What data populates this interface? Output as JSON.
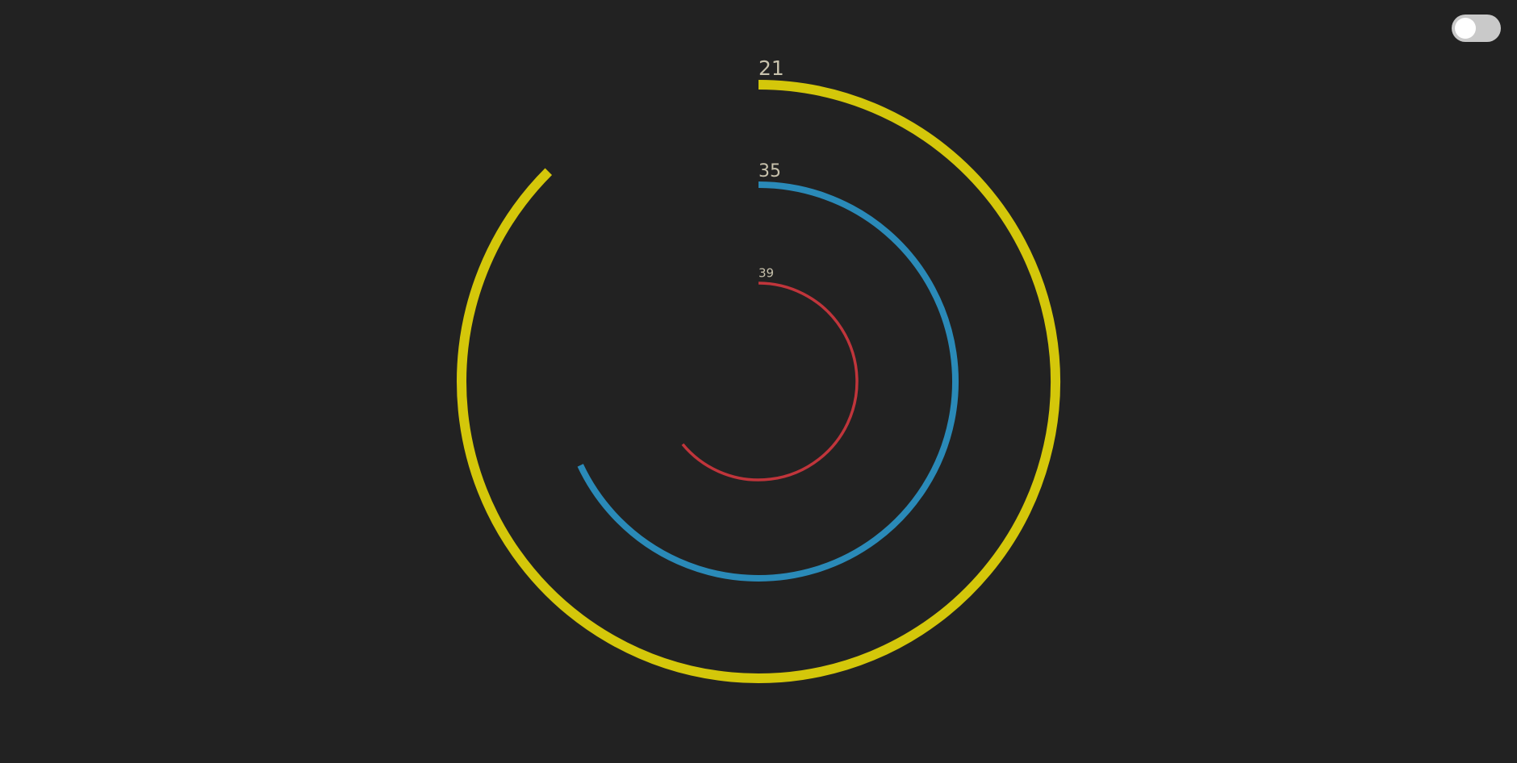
{
  "toggle": {
    "checked": false
  },
  "rings": [
    {
      "name": "outer",
      "label": "21",
      "fraction": 0.875,
      "color": "#d4c70a"
    },
    {
      "name": "middle",
      "label": "35",
      "fraction": 0.68,
      "color": "#2a8ab8"
    },
    {
      "name": "inner",
      "label": "39",
      "fraction": 0.64,
      "color": "#c0353b"
    }
  ]
}
